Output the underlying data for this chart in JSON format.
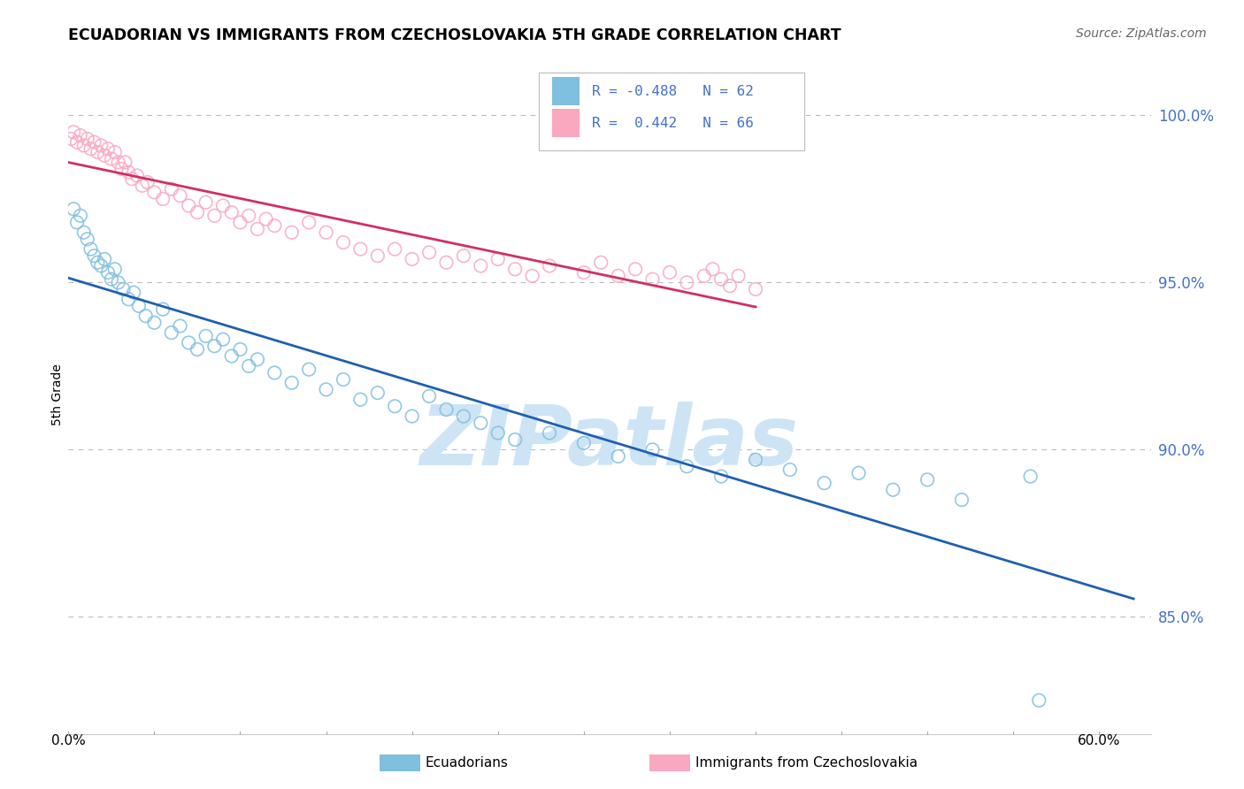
{
  "title": "ECUADORIAN VS IMMIGRANTS FROM CZECHOSLOVAKIA 5TH GRADE CORRELATION CHART",
  "source": "Source: ZipAtlas.com",
  "ylabel": "5th Grade",
  "y_ticks": [
    85.0,
    90.0,
    95.0,
    100.0
  ],
  "y_tick_labels": [
    "85.0%",
    "90.0%",
    "95.0%",
    "100.0%"
  ],
  "xlim": [
    0.0,
    63.0
  ],
  "ylim": [
    81.5,
    101.8
  ],
  "blue_R": -0.488,
  "blue_N": 62,
  "pink_R": 0.442,
  "pink_N": 66,
  "blue_label": "Ecuadorians",
  "pink_label": "Immigrants from Czechoslovakia",
  "blue_color": "#7fbfdf",
  "pink_color": "#f9a8c0",
  "blue_line_color": "#2060b0",
  "pink_line_color": "#d03060",
  "watermark_color": "#cde4f5",
  "blue_scatter_x": [
    0.3,
    0.5,
    0.7,
    0.9,
    1.1,
    1.3,
    1.5,
    1.7,
    1.9,
    2.1,
    2.3,
    2.5,
    2.7,
    2.9,
    3.2,
    3.5,
    3.8,
    4.1,
    4.5,
    5.0,
    5.5,
    6.0,
    6.5,
    7.0,
    7.5,
    8.0,
    8.5,
    9.0,
    9.5,
    10.0,
    10.5,
    11.0,
    12.0,
    13.0,
    14.0,
    15.0,
    16.0,
    17.0,
    18.0,
    19.0,
    20.0,
    21.0,
    22.0,
    23.0,
    24.0,
    25.0,
    26.0,
    28.0,
    30.0,
    32.0,
    34.0,
    36.0,
    38.0,
    40.0,
    42.0,
    44.0,
    46.0,
    48.0,
    50.0,
    52.0,
    56.0,
    56.5
  ],
  "blue_scatter_y": [
    97.2,
    96.8,
    97.0,
    96.5,
    96.3,
    96.0,
    95.8,
    95.6,
    95.5,
    95.7,
    95.3,
    95.1,
    95.4,
    95.0,
    94.8,
    94.5,
    94.7,
    94.3,
    94.0,
    93.8,
    94.2,
    93.5,
    93.7,
    93.2,
    93.0,
    93.4,
    93.1,
    93.3,
    92.8,
    93.0,
    92.5,
    92.7,
    92.3,
    92.0,
    92.4,
    91.8,
    92.1,
    91.5,
    91.7,
    91.3,
    91.0,
    91.6,
    91.2,
    91.0,
    90.8,
    90.5,
    90.3,
    90.5,
    90.2,
    89.8,
    90.0,
    89.5,
    89.2,
    89.7,
    89.4,
    89.0,
    89.3,
    88.8,
    89.1,
    88.5,
    89.2,
    82.5
  ],
  "pink_scatter_x": [
    0.15,
    0.3,
    0.5,
    0.7,
    0.9,
    1.1,
    1.3,
    1.5,
    1.7,
    1.9,
    2.1,
    2.3,
    2.5,
    2.7,
    2.9,
    3.1,
    3.3,
    3.5,
    3.7,
    4.0,
    4.3,
    4.6,
    5.0,
    5.5,
    6.0,
    6.5,
    7.0,
    7.5,
    8.0,
    8.5,
    9.0,
    9.5,
    10.0,
    10.5,
    11.0,
    11.5,
    12.0,
    13.0,
    14.0,
    15.0,
    16.0,
    17.0,
    18.0,
    19.0,
    20.0,
    21.0,
    22.0,
    23.0,
    24.0,
    25.0,
    26.0,
    27.0,
    28.0,
    30.0,
    31.0,
    32.0,
    33.0,
    34.0,
    35.0,
    36.0,
    37.0,
    37.5,
    38.0,
    38.5,
    39.0,
    40.0
  ],
  "pink_scatter_y": [
    99.3,
    99.5,
    99.2,
    99.4,
    99.1,
    99.3,
    99.0,
    99.2,
    98.9,
    99.1,
    98.8,
    99.0,
    98.7,
    98.9,
    98.6,
    98.4,
    98.6,
    98.3,
    98.1,
    98.2,
    97.9,
    98.0,
    97.7,
    97.5,
    97.8,
    97.6,
    97.3,
    97.1,
    97.4,
    97.0,
    97.3,
    97.1,
    96.8,
    97.0,
    96.6,
    96.9,
    96.7,
    96.5,
    96.8,
    96.5,
    96.2,
    96.0,
    95.8,
    96.0,
    95.7,
    95.9,
    95.6,
    95.8,
    95.5,
    95.7,
    95.4,
    95.2,
    95.5,
    95.3,
    95.6,
    95.2,
    95.4,
    95.1,
    95.3,
    95.0,
    95.2,
    95.4,
    95.1,
    94.9,
    95.2,
    94.8
  ]
}
